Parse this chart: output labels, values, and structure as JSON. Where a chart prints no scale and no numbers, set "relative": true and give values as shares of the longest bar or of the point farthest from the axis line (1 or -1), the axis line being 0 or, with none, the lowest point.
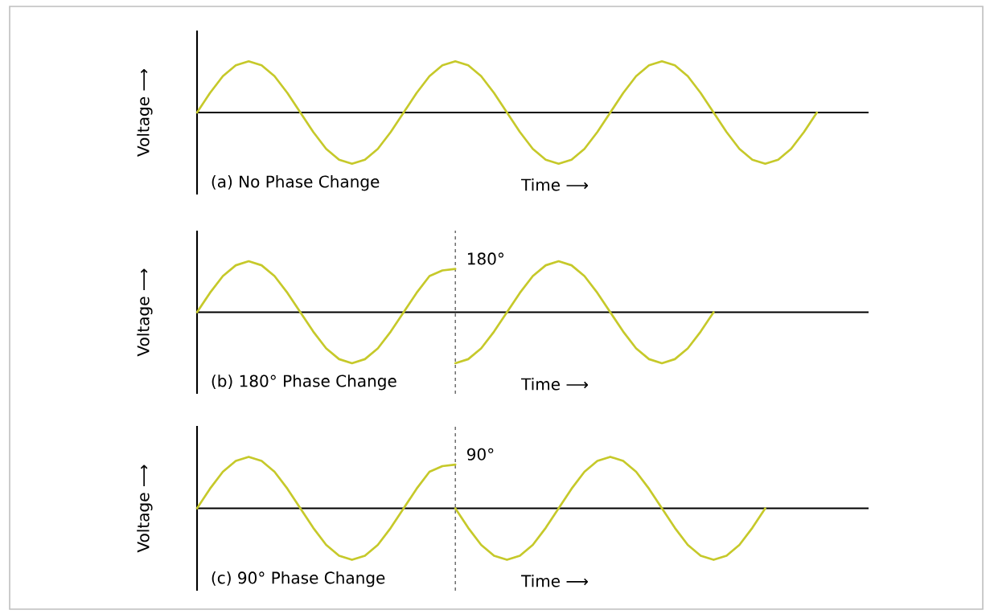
{
  "chart_data": [
    {
      "type": "line",
      "relative": true,
      "ylabel": "Voltage ⟶",
      "xlabel": "Time ⟶",
      "annotations": [
        "(a) No Phase Change"
      ],
      "categories": [
        null,
        null,
        null,
        null,
        null,
        null,
        null,
        null,
        null,
        null,
        null,
        null,
        null,
        null,
        null,
        null,
        null,
        null,
        null,
        null,
        null,
        null,
        null,
        null,
        null,
        null,
        null,
        null,
        null,
        null,
        null,
        null,
        null,
        null,
        null,
        null,
        null,
        null,
        null,
        null,
        null,
        null,
        null,
        null,
        null,
        null,
        null,
        null,
        null,
        null,
        null,
        null,
        null
      ],
      "series": [
        {
          "color": "#c6c92a",
          "values": [
            0,
            0.38,
            0.71,
            0.92,
            1,
            0.92,
            0.71,
            0.38,
            0,
            -0.38,
            -0.71,
            -0.92,
            -1,
            -0.92,
            -0.71,
            -0.38,
            0,
            0.38,
            0.71,
            0.92,
            1,
            0.92,
            0.71,
            0.38,
            0,
            -0.38,
            -0.71,
            -0.92,
            -1,
            -0.92,
            -0.71,
            -0.38,
            0,
            0.38,
            0.71,
            0.92,
            1,
            0.92,
            0.71,
            0.38,
            0,
            -0.38,
            -0.71,
            -0.92,
            -1,
            -0.92,
            -0.71,
            -0.38,
            0,
            null,
            null,
            null,
            null
          ]
        }
      ]
    },
    {
      "type": "line",
      "relative": true,
      "ylabel": "Voltage ⟶",
      "xlabel": "Time ⟶",
      "annotations": [
        "(b) 180° Phase Change",
        "180°"
      ],
      "categories": [
        null,
        null,
        null,
        null,
        null,
        null,
        null,
        null,
        null,
        null,
        null,
        null,
        null,
        null,
        null,
        null,
        null,
        null,
        null,
        null,
        null,
        null,
        null,
        null,
        null,
        null,
        null,
        null,
        null,
        null,
        null,
        null,
        null,
        null,
        null,
        null,
        null,
        null,
        null,
        null,
        null,
        null,
        null,
        null,
        null,
        null,
        null,
        null,
        null,
        null,
        null,
        null,
        null
      ],
      "series": [
        {
          "color": "#c6c92a",
          "values": [
            0,
            0.38,
            0.71,
            0.92,
            1,
            0.92,
            0.71,
            0.38,
            0,
            -0.38,
            -0.71,
            -0.92,
            -1,
            -0.92,
            -0.71,
            -0.38,
            0,
            0.38,
            0.71,
            0.82,
            0.85,
            null,
            null,
            null,
            null,
            null,
            null,
            null,
            null,
            null,
            null,
            null,
            null,
            null,
            null,
            null,
            null,
            null,
            null,
            null,
            null,
            null,
            null,
            null,
            null,
            null,
            null,
            null,
            null,
            null,
            null,
            null,
            null
          ]
        },
        {
          "color": "#c6c92a",
          "values": [
            null,
            null,
            null,
            null,
            null,
            null,
            null,
            null,
            null,
            null,
            null,
            null,
            null,
            null,
            null,
            null,
            null,
            null,
            null,
            null,
            -1,
            -0.92,
            -0.71,
            -0.38,
            0,
            0.38,
            0.71,
            0.92,
            1,
            0.92,
            0.71,
            0.38,
            0,
            -0.38,
            -0.71,
            -0.92,
            -1,
            -0.92,
            -0.71,
            -0.38,
            0,
            null,
            null,
            null,
            null,
            null,
            null,
            null,
            null,
            null,
            null,
            null,
            null
          ]
        }
      ]
    },
    {
      "type": "line",
      "relative": true,
      "ylabel": "Voltage ⟶",
      "xlabel": "Time ⟶",
      "annotations": [
        "(c) 90° Phase Change",
        "90°"
      ],
      "categories": [
        null,
        null,
        null,
        null,
        null,
        null,
        null,
        null,
        null,
        null,
        null,
        null,
        null,
        null,
        null,
        null,
        null,
        null,
        null,
        null,
        null,
        null,
        null,
        null,
        null,
        null,
        null,
        null,
        null,
        null,
        null,
        null,
        null,
        null,
        null,
        null,
        null,
        null,
        null,
        null,
        null,
        null,
        null,
        null,
        null,
        null,
        null,
        null,
        null,
        null,
        null,
        null,
        null
      ],
      "series": [
        {
          "color": "#c6c92a",
          "values": [
            0,
            0.38,
            0.71,
            0.92,
            1,
            0.92,
            0.71,
            0.38,
            0,
            -0.38,
            -0.71,
            -0.92,
            -1,
            -0.92,
            -0.71,
            -0.38,
            0,
            0.38,
            0.71,
            0.82,
            0.85,
            null,
            null,
            null,
            null,
            null,
            null,
            null,
            null,
            null,
            null,
            null,
            null,
            null,
            null,
            null,
            null,
            null,
            null,
            null,
            null,
            null,
            null,
            null,
            null,
            null,
            null,
            null,
            null,
            null,
            null,
            null,
            null
          ]
        },
        {
          "color": "#c6c92a",
          "values": [
            null,
            null,
            null,
            null,
            null,
            null,
            null,
            null,
            null,
            null,
            null,
            null,
            null,
            null,
            null,
            null,
            null,
            null,
            null,
            null,
            0,
            -0.38,
            -0.71,
            -0.92,
            -1,
            -0.92,
            -0.71,
            -0.38,
            0,
            0.38,
            0.71,
            0.92,
            1,
            0.92,
            0.71,
            0.38,
            0,
            -0.38,
            -0.71,
            -0.92,
            -1,
            -0.92,
            -0.71,
            -0.38,
            0,
            null,
            null,
            null,
            null,
            null,
            null,
            null,
            null
          ]
        }
      ]
    }
  ]
}
